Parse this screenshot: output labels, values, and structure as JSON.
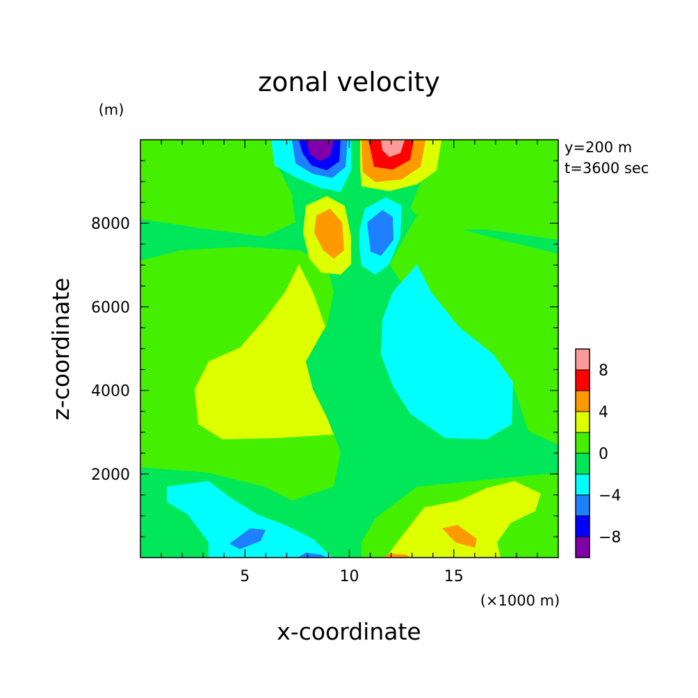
{
  "chart_data": {
    "type": "heatmap",
    "title": "zonal velocity",
    "xlabel": "x-coordinate",
    "ylabel": "z-coordinate",
    "x_unit": "(×1000 m)",
    "y_unit": "(m)",
    "annotations": [
      "y=200 m",
      "t=3600 sec"
    ],
    "xlim": [
      0,
      20
    ],
    "ylim": [
      0,
      10000
    ],
    "x_ticks": [
      5,
      10,
      15
    ],
    "y_ticks": [
      2000,
      4000,
      6000,
      8000
    ],
    "x_tick_labels": [
      "5",
      "10",
      "15"
    ],
    "y_tick_labels": [
      "2000",
      "4000",
      "6000",
      "8000"
    ],
    "colorbar": {
      "levels": [
        -10,
        -8,
        -6,
        -4,
        -2,
        0,
        2,
        4,
        6,
        8,
        10
      ],
      "tick_labels": [
        "8",
        "4",
        "0",
        "−4",
        "−8"
      ],
      "tick_values": [
        8,
        4,
        0,
        -4,
        -8
      ],
      "colors": [
        "#7f00a8",
        "#0000ff",
        "#1e7fff",
        "#00ffff",
        "#00e85a",
        "#44f000",
        "#ddff00",
        "#ff9900",
        "#ff0000",
        "#ff9a9a"
      ]
    },
    "features": [
      {
        "name": "upper-left positive lobe",
        "x": 8.8,
        "z": 7700,
        "value": 4
      },
      {
        "name": "upper-right negative lobe",
        "x": 11.3,
        "z": 7700,
        "value": -4
      },
      {
        "name": "top negative core",
        "x": 8.5,
        "z": 9700,
        "value": -9
      },
      {
        "name": "top positive core",
        "x": 11.7,
        "z": 9700,
        "value": 9
      },
      {
        "name": "left mid-level positive region",
        "x": 5.5,
        "z": 4300,
        "value": 2
      },
      {
        "name": "right mid-level negative region",
        "x": 14.5,
        "z": 4300,
        "value": -2
      },
      {
        "name": "lower-left negative core",
        "x": 5.2,
        "z": 500,
        "value": -5
      },
      {
        "name": "lower-right positive core",
        "x": 15.3,
        "z": 500,
        "value": 5
      }
    ]
  }
}
